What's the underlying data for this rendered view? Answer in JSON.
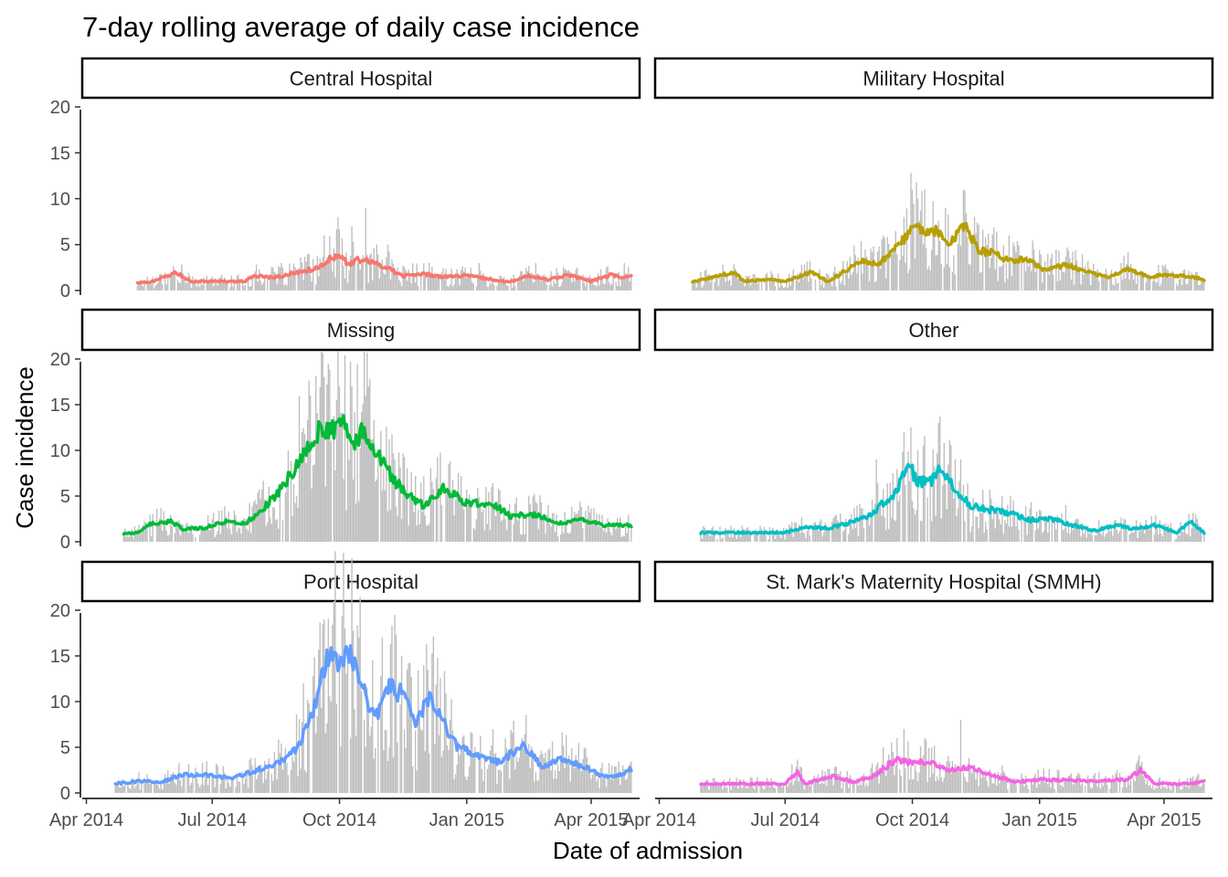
{
  "chart_data": {
    "type": "bar",
    "title": "7-day rolling average of daily case incidence",
    "xlabel": "Date of admission",
    "ylabel": "Case incidence",
    "x_ticks": [
      "Apr 2014",
      "Jul 2014",
      "Oct 2014",
      "Jan 2015",
      "Apr 2015"
    ],
    "x_tick_dates": [
      "2014-04-01",
      "2014-07-01",
      "2014-10-01",
      "2015-01-01",
      "2015-04-01"
    ],
    "xlim": [
      "2014-03-29",
      "2015-05-06"
    ],
    "y_ticks": [
      0,
      5,
      10,
      15,
      20
    ],
    "ylim": [
      -0.5,
      21
    ],
    "grid": false,
    "bar_color": "#bebebe",
    "panels": [
      {
        "name": "Central Hospital",
        "line_color": "#f8766d",
        "rolling_average": [
          [
            "2014-05-08",
            0.8
          ],
          [
            "2014-05-20",
            1.0
          ],
          [
            "2014-06-05",
            2.0
          ],
          [
            "2014-06-15",
            1.0
          ],
          [
            "2014-07-01",
            1.0
          ],
          [
            "2014-07-25",
            1.0
          ],
          [
            "2014-08-01",
            1.6
          ],
          [
            "2014-08-15",
            1.4
          ],
          [
            "2014-09-01",
            2.0
          ],
          [
            "2014-09-15",
            2.4
          ],
          [
            "2014-09-25",
            3.6
          ],
          [
            "2014-10-01",
            3.8
          ],
          [
            "2014-10-08",
            2.8
          ],
          [
            "2014-10-15",
            3.4
          ],
          [
            "2014-10-25",
            3.0
          ],
          [
            "2014-11-05",
            2.5
          ],
          [
            "2014-11-15",
            1.6
          ],
          [
            "2014-12-01",
            1.8
          ],
          [
            "2014-12-15",
            1.5
          ],
          [
            "2015-01-01",
            1.6
          ],
          [
            "2015-01-15",
            1.3
          ],
          [
            "2015-02-01",
            0.9
          ],
          [
            "2015-02-15",
            1.6
          ],
          [
            "2015-03-01",
            1.2
          ],
          [
            "2015-03-15",
            1.7
          ],
          [
            "2015-04-01",
            1.0
          ],
          [
            "2015-04-15",
            1.7
          ],
          [
            "2015-04-25",
            1.4
          ],
          [
            "2015-04-30",
            1.5
          ]
        ],
        "daily_peaks": [
          [
            "2014-08-20",
            3
          ],
          [
            "2014-09-08",
            4
          ],
          [
            "2014-09-20",
            6
          ],
          [
            "2014-09-30",
            8
          ],
          [
            "2014-10-10",
            7
          ],
          [
            "2014-10-20",
            9
          ],
          [
            "2014-11-05",
            5
          ],
          [
            "2014-12-01",
            3
          ],
          [
            "2015-01-10",
            3
          ],
          [
            "2015-02-20",
            3
          ],
          [
            "2015-04-25",
            3
          ]
        ]
      },
      {
        "name": "Military Hospital",
        "line_color": "#b79f00",
        "rolling_average": [
          [
            "2014-04-25",
            0.9
          ],
          [
            "2014-05-10",
            1.5
          ],
          [
            "2014-05-25",
            2.0
          ],
          [
            "2014-06-01",
            1.0
          ],
          [
            "2014-06-20",
            1.2
          ],
          [
            "2014-07-01",
            1.0
          ],
          [
            "2014-07-20",
            2.0
          ],
          [
            "2014-08-01",
            1.0
          ],
          [
            "2014-08-10",
            1.8
          ],
          [
            "2014-08-25",
            3.2
          ],
          [
            "2014-09-05",
            2.8
          ],
          [
            "2014-09-15",
            4.0
          ],
          [
            "2014-09-25",
            5.5
          ],
          [
            "2014-10-01",
            7.5
          ],
          [
            "2014-10-10",
            6.0
          ],
          [
            "2014-10-20",
            6.5
          ],
          [
            "2014-10-28",
            5.0
          ],
          [
            "2014-11-08",
            7.2
          ],
          [
            "2014-11-18",
            4.2
          ],
          [
            "2014-11-28",
            4.2
          ],
          [
            "2014-12-10",
            3.2
          ],
          [
            "2014-12-22",
            3.5
          ],
          [
            "2015-01-05",
            2.2
          ],
          [
            "2015-01-20",
            2.8
          ],
          [
            "2015-02-05",
            2.0
          ],
          [
            "2015-02-20",
            1.5
          ],
          [
            "2015-03-05",
            2.4
          ],
          [
            "2015-03-20",
            1.5
          ],
          [
            "2015-04-05",
            1.7
          ],
          [
            "2015-04-20",
            1.5
          ],
          [
            "2015-04-30",
            1.2
          ]
        ],
        "daily_peaks": [
          [
            "2014-09-10",
            6
          ],
          [
            "2014-09-25",
            8
          ],
          [
            "2014-10-01",
            11
          ],
          [
            "2014-10-05",
            10
          ],
          [
            "2014-10-10",
            11
          ],
          [
            "2014-10-25",
            9
          ],
          [
            "2014-11-15",
            8
          ],
          [
            "2014-12-10",
            6
          ],
          [
            "2015-01-10",
            4
          ],
          [
            "2015-03-01",
            3
          ]
        ]
      },
      {
        "name": "Missing",
        "line_color": "#00ba38",
        "rolling_average": [
          [
            "2014-04-28",
            0.9
          ],
          [
            "2014-05-08",
            1.0
          ],
          [
            "2014-05-18",
            2.0
          ],
          [
            "2014-06-01",
            2.2
          ],
          [
            "2014-06-10",
            1.4
          ],
          [
            "2014-06-25",
            1.5
          ],
          [
            "2014-07-10",
            2.2
          ],
          [
            "2014-07-25",
            2.0
          ],
          [
            "2014-08-05",
            3.4
          ],
          [
            "2014-08-18",
            5.5
          ],
          [
            "2014-08-28",
            7.5
          ],
          [
            "2014-09-08",
            10.5
          ],
          [
            "2014-09-18",
            12.5
          ],
          [
            "2014-09-28",
            12.0
          ],
          [
            "2014-10-05",
            12.8
          ],
          [
            "2014-10-12",
            10.5
          ],
          [
            "2014-10-18",
            12.6
          ],
          [
            "2014-10-28",
            9.5
          ],
          [
            "2014-11-08",
            7.0
          ],
          [
            "2014-11-20",
            5.0
          ],
          [
            "2014-12-01",
            4.0
          ],
          [
            "2014-12-15",
            5.8
          ],
          [
            "2015-01-01",
            4.2
          ],
          [
            "2015-01-20",
            4.2
          ],
          [
            "2015-02-01",
            2.8
          ],
          [
            "2015-02-20",
            3.0
          ],
          [
            "2015-03-10",
            2.0
          ],
          [
            "2015-03-25",
            2.5
          ],
          [
            "2015-04-10",
            1.8
          ],
          [
            "2015-04-30",
            1.8
          ]
        ],
        "daily_peaks": [
          [
            "2014-08-25",
            10
          ],
          [
            "2014-09-10",
            16
          ],
          [
            "2014-09-20",
            18
          ],
          [
            "2014-10-01",
            17
          ],
          [
            "2014-10-10",
            17
          ],
          [
            "2014-10-20",
            16
          ],
          [
            "2014-11-10",
            9
          ],
          [
            "2014-12-10",
            7
          ],
          [
            "2015-01-15",
            6
          ],
          [
            "2015-03-01",
            4
          ]
        ]
      },
      {
        "name": "Other",
        "line_color": "#00bfc4",
        "rolling_average": [
          [
            "2014-05-01",
            1.0
          ],
          [
            "2014-07-01",
            1.0
          ],
          [
            "2014-07-15",
            1.6
          ],
          [
            "2014-08-01",
            1.5
          ],
          [
            "2014-08-15",
            2.0
          ],
          [
            "2014-08-30",
            2.8
          ],
          [
            "2014-09-10",
            4.2
          ],
          [
            "2014-09-20",
            5.5
          ],
          [
            "2014-09-28",
            8.5
          ],
          [
            "2014-10-05",
            6.5
          ],
          [
            "2014-10-15",
            6.5
          ],
          [
            "2014-10-22",
            8.3
          ],
          [
            "2014-11-01",
            5.5
          ],
          [
            "2014-11-12",
            4.0
          ],
          [
            "2014-11-25",
            3.5
          ],
          [
            "2014-12-10",
            3.2
          ],
          [
            "2014-12-25",
            2.4
          ],
          [
            "2015-01-10",
            2.5
          ],
          [
            "2015-01-25",
            1.8
          ],
          [
            "2015-02-10",
            1.2
          ],
          [
            "2015-02-25",
            1.8
          ],
          [
            "2015-03-10",
            1.4
          ],
          [
            "2015-03-25",
            1.8
          ],
          [
            "2015-04-10",
            1.0
          ],
          [
            "2015-04-20",
            2.2
          ],
          [
            "2015-04-30",
            1.0
          ]
        ],
        "daily_peaks": [
          [
            "2014-09-05",
            9
          ],
          [
            "2014-09-25",
            12
          ],
          [
            "2014-10-05",
            10
          ],
          [
            "2014-10-20",
            13
          ],
          [
            "2014-11-05",
            9
          ],
          [
            "2014-12-05",
            5
          ],
          [
            "2015-01-20",
            4
          ]
        ]
      },
      {
        "name": "Port Hospital",
        "line_color": "#619cff",
        "rolling_average": [
          [
            "2014-04-22",
            1.0
          ],
          [
            "2014-05-10",
            1.3
          ],
          [
            "2014-05-25",
            1.2
          ],
          [
            "2014-06-10",
            2.0
          ],
          [
            "2014-06-25",
            2.0
          ],
          [
            "2014-07-15",
            1.6
          ],
          [
            "2014-08-01",
            2.4
          ],
          [
            "2014-08-20",
            3.5
          ],
          [
            "2014-09-01",
            5.0
          ],
          [
            "2014-09-10",
            8.0
          ],
          [
            "2014-09-18",
            12.5
          ],
          [
            "2014-09-25",
            16.2
          ],
          [
            "2014-10-01",
            14.5
          ],
          [
            "2014-10-10",
            15.0
          ],
          [
            "2014-10-20",
            10.5
          ],
          [
            "2014-10-28",
            8.5
          ],
          [
            "2014-11-05",
            11.5
          ],
          [
            "2014-11-15",
            11.0
          ],
          [
            "2014-11-25",
            7.5
          ],
          [
            "2014-12-05",
            10.5
          ],
          [
            "2014-12-15",
            8.0
          ],
          [
            "2014-12-25",
            5.0
          ],
          [
            "2015-01-10",
            4.0
          ],
          [
            "2015-01-25",
            3.3
          ],
          [
            "2015-02-10",
            5.3
          ],
          [
            "2015-02-25",
            2.8
          ],
          [
            "2015-03-10",
            3.8
          ],
          [
            "2015-03-25",
            3.0
          ],
          [
            "2015-04-10",
            1.8
          ],
          [
            "2015-04-20",
            1.9
          ],
          [
            "2015-04-30",
            2.6
          ]
        ],
        "daily_peaks": [
          [
            "2014-09-05",
            12
          ],
          [
            "2014-09-20",
            19
          ],
          [
            "2014-09-27",
            21
          ],
          [
            "2014-10-05",
            18
          ],
          [
            "2014-10-15",
            17
          ],
          [
            "2014-11-01",
            17
          ],
          [
            "2014-11-15",
            15
          ],
          [
            "2014-12-01",
            14
          ],
          [
            "2014-12-20",
            8
          ],
          [
            "2015-01-20",
            7
          ],
          [
            "2015-02-10",
            6
          ]
        ]
      },
      {
        "name": "St. Mark's Maternity Hospital (SMMH)",
        "line_color": "#f564e3",
        "rolling_average": [
          [
            "2014-05-01",
            1.0
          ],
          [
            "2014-07-01",
            1.0
          ],
          [
            "2014-07-10",
            2.4
          ],
          [
            "2014-07-15",
            1.0
          ],
          [
            "2014-08-05",
            1.8
          ],
          [
            "2014-08-20",
            1.2
          ],
          [
            "2014-09-05",
            2.0
          ],
          [
            "2014-09-20",
            3.8
          ],
          [
            "2014-10-01",
            3.2
          ],
          [
            "2014-10-15",
            3.5
          ],
          [
            "2014-10-25",
            2.5
          ],
          [
            "2014-11-10",
            2.8
          ],
          [
            "2014-12-01",
            1.8
          ],
          [
            "2014-12-15",
            1.2
          ],
          [
            "2015-01-01",
            1.5
          ],
          [
            "2015-01-20",
            1.4
          ],
          [
            "2015-02-10",
            1.3
          ],
          [
            "2015-03-05",
            1.5
          ],
          [
            "2015-03-15",
            2.5
          ],
          [
            "2015-03-25",
            1.0
          ],
          [
            "2015-04-20",
            1.0
          ],
          [
            "2015-04-30",
            1.3
          ]
        ],
        "daily_peaks": [
          [
            "2014-09-10",
            5
          ],
          [
            "2014-09-25",
            7
          ],
          [
            "2014-10-10",
            6
          ],
          [
            "2014-11-05",
            8
          ],
          [
            "2014-12-05",
            3
          ],
          [
            "2015-03-15",
            3
          ]
        ]
      }
    ]
  }
}
